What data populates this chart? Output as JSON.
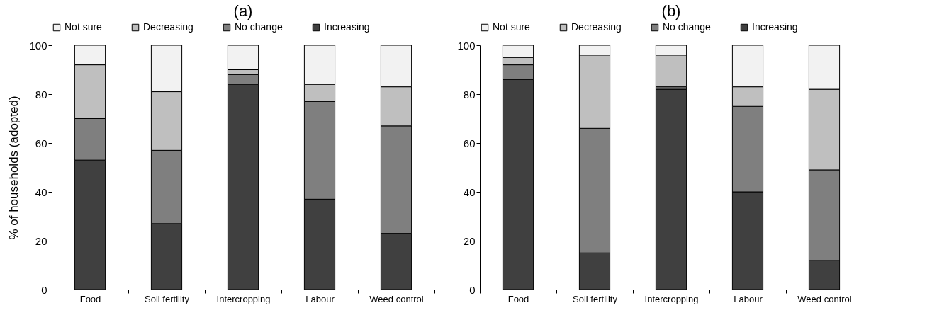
{
  "chart_data": [
    {
      "type": "bar",
      "title": "(a)",
      "ylabel": "% of households (adopted)",
      "stacked": true,
      "legend": "top",
      "categories": [
        "Food",
        "Soil fertility",
        "Intercropping",
        "Labour",
        "Weed control"
      ],
      "ylim": [
        0,
        100
      ],
      "yticks": [
        0,
        20,
        40,
        60,
        80,
        100
      ],
      "series": [
        {
          "name": "Increasing",
          "color": "#404040",
          "values": [
            53,
            27,
            84,
            37,
            23
          ]
        },
        {
          "name": "No change",
          "color": "#7f7f7f",
          "values": [
            17,
            30,
            4,
            40,
            44
          ]
        },
        {
          "name": "Decreasing",
          "color": "#bfbfbf",
          "values": [
            22,
            24,
            2,
            7,
            16
          ]
        },
        {
          "name": "Not sure",
          "color": "#f2f2f2",
          "values": [
            8,
            19,
            10,
            16,
            17
          ]
        }
      ]
    },
    {
      "type": "bar",
      "title": "(b)",
      "stacked": true,
      "legend": "top",
      "categories": [
        "Food",
        "Soil fertility",
        "Intercropping",
        "Labour",
        "Weed control"
      ],
      "ylim": [
        0,
        100
      ],
      "yticks": [
        0,
        20,
        40,
        60,
        80,
        100
      ],
      "series": [
        {
          "name": "Increasing",
          "color": "#404040",
          "values": [
            86,
            15,
            82,
            40,
            12
          ]
        },
        {
          "name": "No change",
          "color": "#7f7f7f",
          "values": [
            6,
            51,
            1,
            35,
            37
          ]
        },
        {
          "name": "Decreasing",
          "color": "#bfbfbf",
          "values": [
            3,
            30,
            13,
            8,
            33
          ]
        },
        {
          "name": "Not sure",
          "color": "#f2f2f2",
          "values": [
            5,
            4,
            4,
            17,
            18
          ]
        }
      ]
    }
  ]
}
